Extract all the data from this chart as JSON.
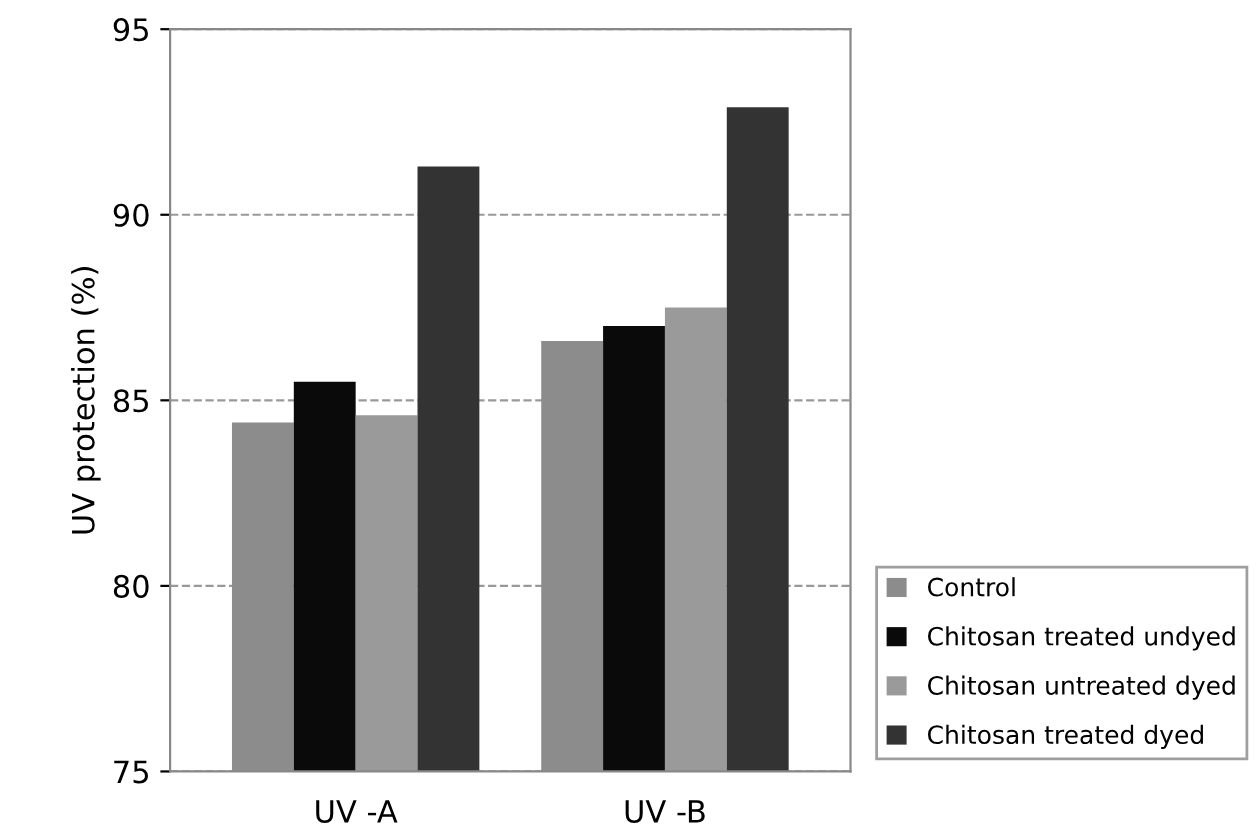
{
  "chart_data": {
    "type": "bar",
    "ylabel": "UV protection (%)",
    "categories": [
      "UV -A",
      "UV -B"
    ],
    "series": [
      {
        "name": "Control",
        "color": "#8c8c8c",
        "values": [
          84.4,
          86.6
        ]
      },
      {
        "name": "Chitosan treated undyed",
        "color": "#0a0a0a",
        "values": [
          85.5,
          87.0
        ]
      },
      {
        "name": "Chitosan untreated dyed",
        "color": "#9a9a9a",
        "values": [
          84.6,
          87.5
        ]
      },
      {
        "name": "Chitosan treated dyed",
        "color": "#333333",
        "values": [
          91.3,
          92.9
        ]
      }
    ],
    "ylim": [
      75,
      95
    ],
    "yticks": [
      75,
      80,
      85,
      90,
      95
    ],
    "grid": "y",
    "line_style": "dashed",
    "legend": "bottom right"
  }
}
